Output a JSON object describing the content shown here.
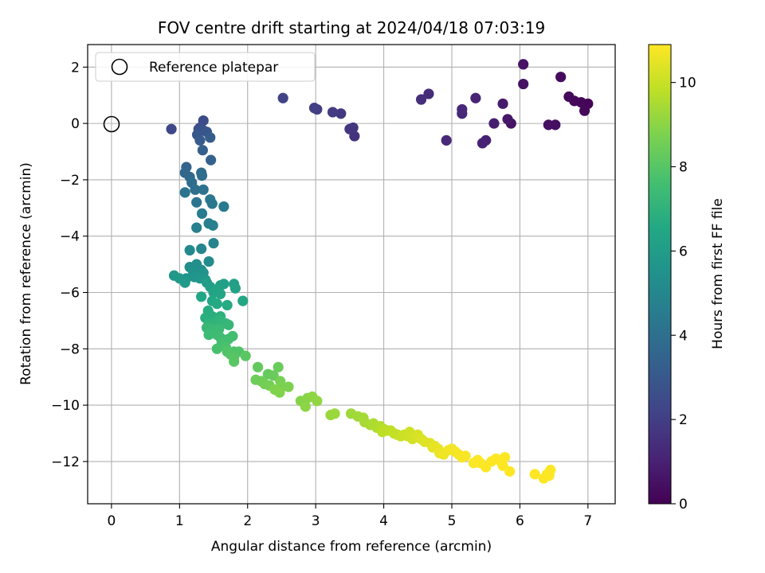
{
  "chart_data": {
    "type": "scatter",
    "title": "FOV centre drift starting at 2024/04/18 07:03:19",
    "xlabel": "Angular distance from reference (arcmin)",
    "ylabel": "Rotation from reference (arcmin)",
    "xlim": [
      -0.35,
      7.4
    ],
    "ylim": [
      -13.5,
      2.8
    ],
    "xticks": [
      0,
      1,
      2,
      3,
      4,
      5,
      6,
      7
    ],
    "yticks": [
      2,
      0,
      -2,
      -4,
      -6,
      -8,
      -10,
      -12
    ],
    "grid": true,
    "legend": {
      "position": "top-left",
      "entries": [
        "Reference platepar"
      ]
    },
    "reference_point": {
      "x": 0,
      "y": 0
    },
    "colorbar": {
      "label": "Hours from first FF file",
      "range": [
        0,
        10.9
      ],
      "ticks": [
        0,
        2,
        4,
        6,
        8,
        10
      ],
      "colormap": "viridis"
    },
    "series": [
      {
        "points": [
          [
            7.0,
            0.7,
            0.1
          ],
          [
            6.9,
            0.75,
            0.15
          ],
          [
            6.8,
            0.8,
            0.2
          ],
          [
            6.95,
            0.45,
            0.2
          ],
          [
            6.72,
            0.95,
            0.25
          ],
          [
            6.6,
            1.65,
            0.3
          ],
          [
            6.52,
            -0.05,
            0.4
          ],
          [
            6.42,
            -0.05,
            0.45
          ],
          [
            6.05,
            1.4,
            0.5
          ],
          [
            6.05,
            2.1,
            0.55
          ],
          [
            5.87,
            0.0,
            0.6
          ],
          [
            5.82,
            0.15,
            0.7
          ],
          [
            5.75,
            0.7,
            0.8
          ],
          [
            5.62,
            0.0,
            0.9
          ],
          [
            5.5,
            -0.6,
            1.0
          ],
          [
            5.45,
            -0.7,
            1.05
          ],
          [
            5.35,
            0.9,
            1.1
          ],
          [
            5.15,
            0.35,
            1.2
          ],
          [
            5.15,
            0.5,
            1.25
          ],
          [
            4.92,
            -0.6,
            1.3
          ],
          [
            4.66,
            1.05,
            1.4
          ],
          [
            4.55,
            0.85,
            1.45
          ],
          [
            3.57,
            -0.45,
            1.6
          ],
          [
            3.55,
            -0.15,
            1.7
          ],
          [
            3.5,
            -0.2,
            1.75
          ],
          [
            3.37,
            0.35,
            1.8
          ],
          [
            3.25,
            0.4,
            1.9
          ],
          [
            3.02,
            0.5,
            1.95
          ],
          [
            2.98,
            0.55,
            2.0
          ],
          [
            2.52,
            0.9,
            2.1
          ],
          [
            0.88,
            -0.2,
            2.3
          ],
          [
            1.35,
            0.1,
            2.5
          ],
          [
            1.3,
            -0.15,
            2.6
          ],
          [
            1.28,
            -0.2,
            2.7
          ],
          [
            1.35,
            -0.25,
            2.8
          ],
          [
            1.4,
            -0.3,
            2.9
          ],
          [
            1.26,
            -0.4,
            3.0
          ],
          [
            1.3,
            -0.6,
            3.1
          ],
          [
            1.45,
            -0.5,
            3.15
          ],
          [
            1.34,
            -0.95,
            3.3
          ],
          [
            1.46,
            -1.3,
            3.4
          ],
          [
            1.1,
            -1.55,
            3.5
          ],
          [
            1.08,
            -1.75,
            3.6
          ],
          [
            1.15,
            -1.9,
            3.7
          ],
          [
            1.32,
            -1.75,
            3.8
          ],
          [
            1.33,
            -1.85,
            3.85
          ],
          [
            1.18,
            -2.1,
            3.9
          ],
          [
            1.23,
            -2.35,
            4.0
          ],
          [
            1.35,
            -2.35,
            4.1
          ],
          [
            1.08,
            -2.45,
            4.15
          ],
          [
            1.25,
            -2.8,
            4.2
          ],
          [
            1.45,
            -2.7,
            4.3
          ],
          [
            1.48,
            -2.85,
            4.35
          ],
          [
            1.65,
            -2.95,
            4.45
          ],
          [
            1.33,
            -3.2,
            4.5
          ],
          [
            1.43,
            -3.55,
            4.6
          ],
          [
            1.49,
            -3.62,
            4.65
          ],
          [
            1.25,
            -3.7,
            4.7
          ],
          [
            1.5,
            -4.25,
            4.9
          ],
          [
            1.32,
            -4.45,
            5.0
          ],
          [
            1.15,
            -4.5,
            5.1
          ],
          [
            1.43,
            -4.9,
            5.2
          ],
          [
            1.15,
            -5.1,
            5.3
          ],
          [
            1.25,
            -5.0,
            5.35
          ],
          [
            1.32,
            -5.2,
            5.4
          ],
          [
            1.2,
            -5.25,
            5.45
          ],
          [
            1.35,
            -5.3,
            5.5
          ],
          [
            1.28,
            -5.4,
            5.55
          ],
          [
            1.22,
            -5.45,
            5.6
          ],
          [
            1.1,
            -5.5,
            5.65
          ],
          [
            1.3,
            -5.5,
            5.7
          ],
          [
            1.38,
            -5.55,
            5.75
          ],
          [
            0.92,
            -5.4,
            5.8
          ],
          [
            1.0,
            -5.5,
            5.85
          ],
          [
            1.08,
            -5.65,
            5.9
          ],
          [
            1.4,
            -5.65,
            5.95
          ],
          [
            1.45,
            -5.8,
            6.0
          ],
          [
            1.6,
            -5.75,
            6.05
          ],
          [
            1.65,
            -5.7,
            6.1
          ],
          [
            1.8,
            -5.7,
            6.15
          ],
          [
            1.82,
            -5.85,
            6.2
          ],
          [
            1.5,
            -6.0,
            6.3
          ],
          [
            1.55,
            -5.9,
            6.35
          ],
          [
            1.6,
            -6.05,
            6.4
          ],
          [
            1.32,
            -6.15,
            6.45
          ],
          [
            1.93,
            -6.3,
            6.5
          ],
          [
            1.48,
            -6.3,
            6.55
          ],
          [
            1.55,
            -6.4,
            6.6
          ],
          [
            1.7,
            -6.45,
            6.65
          ],
          [
            1.42,
            -6.65,
            6.7
          ],
          [
            1.48,
            -6.85,
            6.75
          ],
          [
            1.38,
            -6.9,
            6.8
          ],
          [
            1.5,
            -7.0,
            6.85
          ],
          [
            1.6,
            -6.85,
            6.9
          ],
          [
            1.55,
            -7.0,
            6.95
          ],
          [
            1.43,
            -7.1,
            7.0
          ],
          [
            1.52,
            -7.15,
            7.05
          ],
          [
            1.6,
            -7.0,
            7.1
          ],
          [
            1.68,
            -7.1,
            7.15
          ],
          [
            1.72,
            -7.15,
            7.2
          ],
          [
            1.4,
            -7.25,
            7.25
          ],
          [
            1.47,
            -7.3,
            7.3
          ],
          [
            1.58,
            -7.3,
            7.35
          ],
          [
            1.43,
            -7.5,
            7.4
          ],
          [
            1.55,
            -7.5,
            7.45
          ],
          [
            1.6,
            -7.6,
            7.5
          ],
          [
            1.72,
            -7.65,
            7.55
          ],
          [
            1.78,
            -7.55,
            7.6
          ],
          [
            1.62,
            -7.8,
            7.65
          ],
          [
            1.55,
            -8.0,
            7.7
          ],
          [
            1.68,
            -7.95,
            7.75
          ],
          [
            1.8,
            -8.1,
            7.8
          ],
          [
            1.87,
            -8.1,
            7.85
          ],
          [
            1.7,
            -8.1,
            7.9
          ],
          [
            1.75,
            -8.2,
            7.95
          ],
          [
            1.8,
            -8.3,
            8.0
          ],
          [
            1.8,
            -8.45,
            8.05
          ],
          [
            1.97,
            -8.25,
            8.1
          ],
          [
            2.15,
            -8.65,
            8.25
          ],
          [
            2.3,
            -8.9,
            8.3
          ],
          [
            2.38,
            -8.95,
            8.35
          ],
          [
            2.45,
            -8.65,
            8.4
          ],
          [
            2.12,
            -9.1,
            8.45
          ],
          [
            2.2,
            -9.15,
            8.5
          ],
          [
            2.25,
            -9.25,
            8.55
          ],
          [
            2.32,
            -9.3,
            8.6
          ],
          [
            2.48,
            -9.15,
            8.65
          ],
          [
            2.5,
            -9.35,
            8.7
          ],
          [
            2.6,
            -9.35,
            8.75
          ],
          [
            2.4,
            -9.45,
            8.8
          ],
          [
            2.47,
            -9.55,
            8.85
          ],
          [
            2.78,
            -9.85,
            8.9
          ],
          [
            2.88,
            -9.75,
            8.95
          ],
          [
            2.85,
            -10.05,
            9.0
          ],
          [
            2.95,
            -9.7,
            9.05
          ],
          [
            3.02,
            -9.85,
            9.1
          ],
          [
            3.22,
            -10.35,
            9.2
          ],
          [
            3.28,
            -10.3,
            9.25
          ],
          [
            3.52,
            -10.3,
            9.3
          ],
          [
            3.62,
            -10.4,
            9.35
          ],
          [
            3.7,
            -10.45,
            9.4
          ],
          [
            3.72,
            -10.6,
            9.45
          ],
          [
            3.8,
            -10.7,
            9.5
          ],
          [
            3.85,
            -10.65,
            9.55
          ],
          [
            3.9,
            -10.8,
            9.6
          ],
          [
            3.95,
            -10.75,
            9.65
          ],
          [
            4.0,
            -10.85,
            9.7
          ],
          [
            4.05,
            -10.9,
            9.75
          ],
          [
            3.98,
            -10.95,
            9.8
          ],
          [
            4.1,
            -10.9,
            9.85
          ],
          [
            4.15,
            -11.0,
            9.9
          ],
          [
            4.2,
            -11.05,
            9.95
          ],
          [
            4.25,
            -11.1,
            10.0
          ],
          [
            4.3,
            -11.05,
            10.05
          ],
          [
            4.35,
            -11.1,
            10.1
          ],
          [
            4.38,
            -10.95,
            10.12
          ],
          [
            4.42,
            -11.2,
            10.15
          ],
          [
            4.45,
            -11.15,
            10.2
          ],
          [
            4.5,
            -11.05,
            10.25
          ],
          [
            4.55,
            -11.2,
            10.3
          ],
          [
            4.6,
            -11.3,
            10.35
          ],
          [
            4.68,
            -11.35,
            10.4
          ],
          [
            4.72,
            -11.5,
            10.45
          ],
          [
            4.75,
            -11.45,
            10.5
          ],
          [
            4.8,
            -11.55,
            10.55
          ],
          [
            4.82,
            -11.7,
            10.6
          ],
          [
            4.88,
            -11.75,
            10.65
          ],
          [
            4.95,
            -11.6,
            10.7
          ],
          [
            5.0,
            -11.55,
            10.72
          ],
          [
            5.05,
            -11.65,
            10.75
          ],
          [
            5.1,
            -11.75,
            10.78
          ],
          [
            5.15,
            -11.85,
            10.8
          ],
          [
            5.2,
            -11.8,
            10.82
          ],
          [
            5.32,
            -12.05,
            10.85
          ],
          [
            5.38,
            -11.95,
            10.86
          ],
          [
            5.42,
            -12.05,
            10.87
          ],
          [
            5.5,
            -12.2,
            10.88
          ],
          [
            5.58,
            -12.0,
            10.89
          ],
          [
            5.65,
            -11.9,
            10.9
          ],
          [
            5.72,
            -12.0,
            10.9
          ],
          [
            5.78,
            -11.85,
            10.9
          ],
          [
            5.75,
            -12.15,
            10.9
          ],
          [
            5.85,
            -12.35,
            10.9
          ],
          [
            6.22,
            -12.45,
            10.9
          ],
          [
            6.35,
            -12.6,
            10.9
          ],
          [
            6.4,
            -12.45,
            10.9
          ],
          [
            6.45,
            -12.3,
            10.9
          ],
          [
            6.43,
            -12.5,
            10.9
          ]
        ]
      }
    ]
  }
}
